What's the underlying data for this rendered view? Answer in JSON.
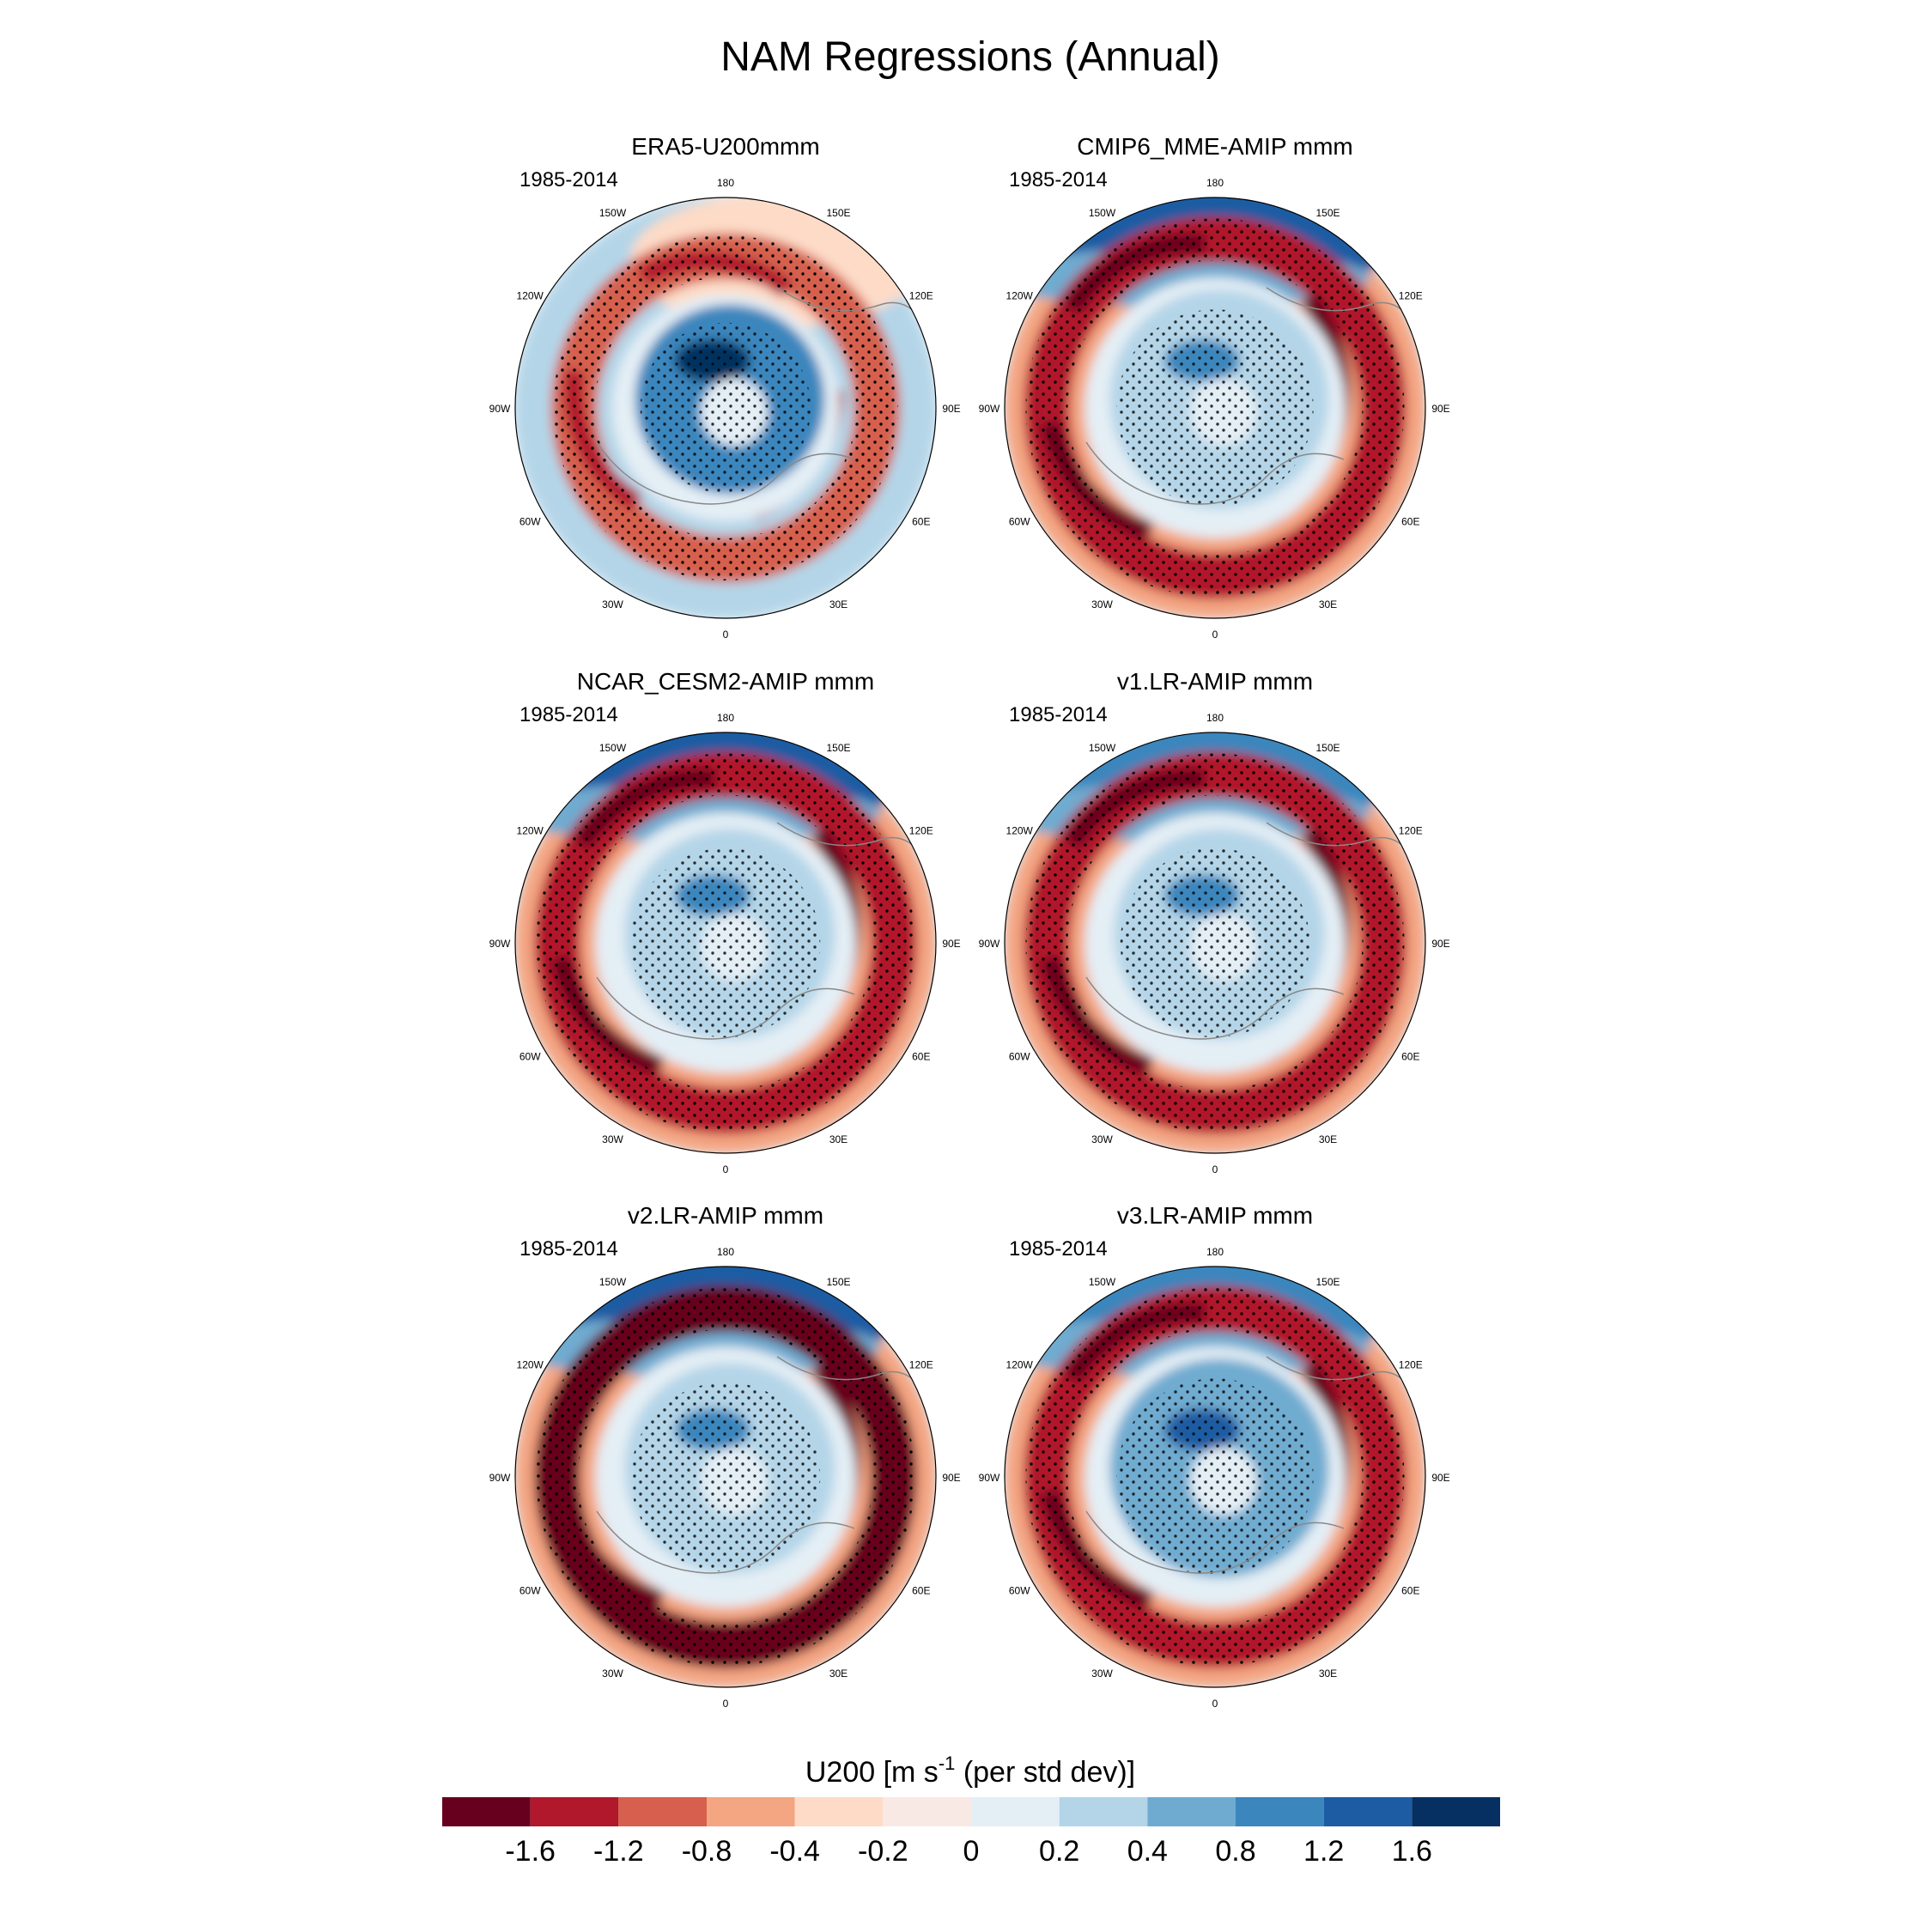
{
  "chart_data": {
    "type": "polar_contour_maps",
    "title": "NAM Regressions (Annual)",
    "variable": "U200",
    "period": "1985-2014",
    "colorbar": {
      "title": "U200 [m s",
      "title_sup": "-1",
      "title_tail": " (per std dev)]",
      "levels": [
        -1.6,
        -1.2,
        -0.8,
        -0.4,
        -0.2,
        0,
        0.2,
        0.4,
        0.8,
        1.2,
        1.6
      ],
      "tick_labels": [
        "-1.6",
        "-1.2",
        "-0.8",
        "-0.4",
        "-0.2",
        "0",
        "0.2",
        "0.4",
        "0.8",
        "1.2",
        "1.6"
      ],
      "colors": [
        "#67001f",
        "#b2182b",
        "#d6604d",
        "#f4a582",
        "#fddbc7",
        "#f9e9e4",
        "#e4eef5",
        "#b4d5e8",
        "#6fabd0",
        "#3a86bd",
        "#1d5ba3",
        "#053061"
      ]
    },
    "longitude_labels": [
      "180",
      "150E",
      "120E",
      "90E",
      "60E",
      "30E",
      "0",
      "30W",
      "60W",
      "90W",
      "120W",
      "150W"
    ],
    "panels": [
      {
        "title": "ERA5-U200mmm",
        "period": "1985-2014",
        "rings": [
          {
            "r": 0.96,
            "pattern": "mixed_blue_red",
            "value": 0.3
          },
          {
            "r": 0.72,
            "pattern": "red_ring",
            "value": -0.8
          },
          {
            "r": 0.45,
            "pattern": "blue_core",
            "value": 1.2
          }
        ]
      },
      {
        "title": "CMIP6_MME-AMIP  mmm",
        "period": "1985-2014",
        "rings": [
          {
            "r": 0.96,
            "pattern": "blue_outer_top",
            "value": 1.6
          },
          {
            "r": 0.8,
            "pattern": "red_ring",
            "value": -1.2
          },
          {
            "r": 0.52,
            "pattern": "blue_core",
            "value": 0.4
          }
        ]
      },
      {
        "title": "NCAR_CESM2-AMIP  mmm",
        "period": "1985-2014",
        "rings": [
          {
            "r": 0.96,
            "pattern": "blue_outer_top",
            "value": 1.6
          },
          {
            "r": 0.8,
            "pattern": "red_ring",
            "value": -1.2
          },
          {
            "r": 0.5,
            "pattern": "blue_core",
            "value": 0.4
          }
        ]
      },
      {
        "title": "v1.LR-AMIP  mmm",
        "period": "1985-2014",
        "rings": [
          {
            "r": 0.96,
            "pattern": "blue_outer_top",
            "value": 1.2
          },
          {
            "r": 0.8,
            "pattern": "red_ring",
            "value": -1.2
          },
          {
            "r": 0.5,
            "pattern": "blue_core",
            "value": 0.4
          }
        ]
      },
      {
        "title": "v2.LR-AMIP  mmm",
        "period": "1985-2014",
        "rings": [
          {
            "r": 0.96,
            "pattern": "blue_outer_top",
            "value": 1.6
          },
          {
            "r": 0.8,
            "pattern": "red_ring",
            "value": -1.6
          },
          {
            "r": 0.5,
            "pattern": "blue_core",
            "value": 0.4
          }
        ]
      },
      {
        "title": "v3.LR-AMIP  mmm",
        "period": "1985-2014",
        "rings": [
          {
            "r": 0.96,
            "pattern": "blue_outer_top",
            "value": 1.2
          },
          {
            "r": 0.8,
            "pattern": "red_ring",
            "value": -1.2
          },
          {
            "r": 0.52,
            "pattern": "blue_core",
            "value": 0.8
          }
        ]
      }
    ]
  }
}
